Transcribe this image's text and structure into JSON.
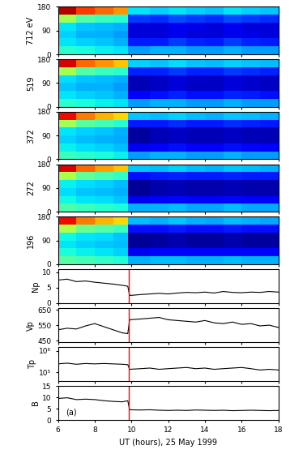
{
  "chart_data": [
    {
      "type": "heatmap",
      "ylabel": "712 eV",
      "x_edges": [
        6,
        7,
        8,
        9,
        9.8,
        11,
        12,
        13,
        14,
        15,
        16,
        17,
        18
      ],
      "y_edges": [
        0,
        30,
        60,
        90,
        120,
        150,
        180
      ],
      "cells": [
        [
          0.4,
          0.38,
          0.36,
          0.35,
          0.28,
          0.3,
          0.3,
          0.28,
          0.28,
          0.3,
          0.28,
          0.28
        ],
        [
          0.35,
          0.33,
          0.32,
          0.3,
          0.15,
          0.15,
          0.18,
          0.16,
          0.15,
          0.18,
          0.16,
          0.15
        ],
        [
          0.33,
          0.3,
          0.3,
          0.28,
          0.08,
          0.08,
          0.1,
          0.08,
          0.08,
          0.1,
          0.09,
          0.08
        ],
        [
          0.35,
          0.32,
          0.31,
          0.3,
          0.08,
          0.08,
          0.1,
          0.09,
          0.08,
          0.1,
          0.08,
          0.08
        ],
        [
          0.55,
          0.45,
          0.42,
          0.4,
          0.18,
          0.17,
          0.2,
          0.18,
          0.17,
          0.2,
          0.18,
          0.17
        ],
        [
          0.95,
          0.85,
          0.8,
          0.75,
          0.35,
          0.33,
          0.35,
          0.33,
          0.32,
          0.35,
          0.33,
          0.32
        ]
      ],
      "color_range": [
        0,
        1
      ],
      "xlim": [
        6,
        18
      ],
      "xticks": [
        6,
        8,
        10,
        12,
        14,
        16,
        18
      ],
      "ylim": [
        0,
        180
      ],
      "yticks": [
        0,
        90,
        180
      ],
      "tick_labels": "y"
    },
    {
      "type": "heatmap",
      "ylabel": "519",
      "x_edges": [
        6,
        7,
        8,
        9,
        9.8,
        11,
        12,
        13,
        14,
        15,
        16,
        17,
        18
      ],
      "y_edges": [
        0,
        30,
        60,
        90,
        120,
        150,
        180
      ],
      "cells": [
        [
          0.4,
          0.38,
          0.36,
          0.35,
          0.28,
          0.3,
          0.3,
          0.28,
          0.28,
          0.3,
          0.28,
          0.28
        ],
        [
          0.35,
          0.33,
          0.32,
          0.3,
          0.12,
          0.14,
          0.16,
          0.14,
          0.14,
          0.16,
          0.15,
          0.14
        ],
        [
          0.32,
          0.3,
          0.3,
          0.28,
          0.05,
          0.06,
          0.08,
          0.06,
          0.06,
          0.08,
          0.07,
          0.06
        ],
        [
          0.34,
          0.32,
          0.31,
          0.3,
          0.05,
          0.06,
          0.08,
          0.07,
          0.06,
          0.08,
          0.07,
          0.06
        ],
        [
          0.55,
          0.45,
          0.42,
          0.4,
          0.16,
          0.16,
          0.18,
          0.16,
          0.16,
          0.18,
          0.17,
          0.16
        ],
        [
          0.92,
          0.8,
          0.75,
          0.7,
          0.33,
          0.32,
          0.34,
          0.32,
          0.31,
          0.33,
          0.32,
          0.31
        ]
      ],
      "color_range": [
        0,
        1
      ],
      "xlim": [
        6,
        18
      ],
      "xticks": [
        6,
        8,
        10,
        12,
        14,
        16,
        18
      ],
      "ylim": [
        0,
        180
      ],
      "yticks": [
        0,
        90,
        180
      ],
      "tick_labels": "y"
    },
    {
      "type": "heatmap",
      "ylabel": "372",
      "x_edges": [
        6,
        7,
        8,
        9,
        9.8,
        11,
        12,
        13,
        14,
        15,
        16,
        17,
        18
      ],
      "y_edges": [
        0,
        30,
        60,
        90,
        120,
        150,
        180
      ],
      "cells": [
        [
          0.42,
          0.4,
          0.38,
          0.36,
          0.28,
          0.3,
          0.3,
          0.28,
          0.28,
          0.3,
          0.28,
          0.28
        ],
        [
          0.36,
          0.34,
          0.33,
          0.31,
          0.1,
          0.12,
          0.14,
          0.12,
          0.12,
          0.14,
          0.13,
          0.12
        ],
        [
          0.33,
          0.31,
          0.3,
          0.29,
          0.03,
          0.05,
          0.06,
          0.05,
          0.05,
          0.06,
          0.05,
          0.05
        ],
        [
          0.35,
          0.33,
          0.32,
          0.3,
          0.03,
          0.05,
          0.06,
          0.05,
          0.05,
          0.06,
          0.05,
          0.05
        ],
        [
          0.55,
          0.46,
          0.43,
          0.4,
          0.15,
          0.15,
          0.17,
          0.15,
          0.15,
          0.17,
          0.16,
          0.15
        ],
        [
          0.9,
          0.78,
          0.72,
          0.68,
          0.32,
          0.31,
          0.33,
          0.31,
          0.3,
          0.32,
          0.31,
          0.3
        ]
      ],
      "color_range": [
        0,
        1
      ],
      "xlim": [
        6,
        18
      ],
      "xticks": [
        6,
        8,
        10,
        12,
        14,
        16,
        18
      ],
      "ylim": [
        0,
        180
      ],
      "yticks": [
        0,
        90,
        180
      ],
      "tick_labels": "y"
    },
    {
      "type": "heatmap",
      "ylabel": "272",
      "x_edges": [
        6,
        7,
        8,
        9,
        9.8,
        11,
        12,
        13,
        14,
        15,
        16,
        17,
        18
      ],
      "y_edges": [
        0,
        30,
        60,
        90,
        120,
        150,
        180
      ],
      "cells": [
        [
          0.44,
          0.42,
          0.4,
          0.38,
          0.3,
          0.3,
          0.31,
          0.29,
          0.29,
          0.31,
          0.29,
          0.29
        ],
        [
          0.37,
          0.35,
          0.34,
          0.32,
          0.1,
          0.12,
          0.13,
          0.12,
          0.12,
          0.13,
          0.12,
          0.12
        ],
        [
          0.34,
          0.32,
          0.31,
          0.3,
          0.02,
          0.04,
          0.05,
          0.04,
          0.04,
          0.05,
          0.04,
          0.04
        ],
        [
          0.36,
          0.34,
          0.33,
          0.31,
          0.02,
          0.04,
          0.05,
          0.04,
          0.04,
          0.05,
          0.04,
          0.04
        ],
        [
          0.56,
          0.47,
          0.44,
          0.41,
          0.14,
          0.15,
          0.16,
          0.15,
          0.15,
          0.16,
          0.15,
          0.15
        ],
        [
          0.92,
          0.8,
          0.74,
          0.7,
          0.32,
          0.31,
          0.33,
          0.31,
          0.3,
          0.32,
          0.31,
          0.3
        ]
      ],
      "color_range": [
        0,
        1
      ],
      "xlim": [
        6,
        18
      ],
      "xticks": [
        6,
        8,
        10,
        12,
        14,
        16,
        18
      ],
      "ylim": [
        0,
        180
      ],
      "yticks": [
        0,
        90,
        180
      ],
      "tick_labels": "y"
    },
    {
      "type": "heatmap",
      "ylabel": "196",
      "x_edges": [
        6,
        7,
        8,
        9,
        9.8,
        11,
        12,
        13,
        14,
        15,
        16,
        17,
        18
      ],
      "y_edges": [
        0,
        30,
        60,
        90,
        120,
        150,
        180
      ],
      "cells": [
        [
          0.45,
          0.43,
          0.41,
          0.39,
          0.3,
          0.31,
          0.31,
          0.3,
          0.3,
          0.31,
          0.3,
          0.3
        ],
        [
          0.38,
          0.36,
          0.35,
          0.33,
          0.1,
          0.11,
          0.12,
          0.11,
          0.11,
          0.12,
          0.11,
          0.11
        ],
        [
          0.35,
          0.33,
          0.32,
          0.31,
          0.02,
          0.03,
          0.04,
          0.03,
          0.03,
          0.04,
          0.03,
          0.03
        ],
        [
          0.37,
          0.35,
          0.34,
          0.32,
          0.02,
          0.03,
          0.04,
          0.03,
          0.03,
          0.04,
          0.03,
          0.03
        ],
        [
          0.57,
          0.48,
          0.45,
          0.42,
          0.14,
          0.14,
          0.15,
          0.14,
          0.14,
          0.15,
          0.14,
          0.14
        ],
        [
          0.9,
          0.78,
          0.72,
          0.68,
          0.31,
          0.3,
          0.32,
          0.3,
          0.29,
          0.31,
          0.3,
          0.29
        ]
      ],
      "color_range": [
        0,
        1
      ],
      "xlim": [
        6,
        18
      ],
      "xticks": [
        6,
        8,
        10,
        12,
        14,
        16,
        18
      ],
      "ylim": [
        0,
        180
      ],
      "yticks": [
        0,
        90,
        180
      ],
      "tick_labels": "y"
    },
    {
      "type": "line",
      "ylabel": "Np",
      "x": [
        6.0,
        6.5,
        7.0,
        7.5,
        8.0,
        8.5,
        9.0,
        9.5,
        9.8,
        9.9,
        10.5,
        11.0,
        11.5,
        12.0,
        12.5,
        13.0,
        13.5,
        14.0,
        14.5,
        15.0,
        15.5,
        16.0,
        16.5,
        17.0,
        17.5,
        18.0
      ],
      "values": [
        7.5,
        7.8,
        7.0,
        7.2,
        6.8,
        6.5,
        6.2,
        5.8,
        5.5,
        2.5,
        2.8,
        3.0,
        3.2,
        3.0,
        3.3,
        3.5,
        3.4,
        3.6,
        3.3,
        3.8,
        3.5,
        3.4,
        3.6,
        3.5,
        3.8,
        3.6
      ],
      "color": "#000000",
      "vertical_line": 9.85,
      "xlim": [
        6,
        18
      ],
      "xticks": [
        6,
        8,
        10,
        12,
        14,
        16,
        18
      ],
      "ylim": [
        0,
        11
      ],
      "yticks": [
        0,
        5,
        10
      ],
      "tick_labels": "y"
    },
    {
      "type": "line",
      "ylabel": "Vp",
      "x": [
        6.0,
        6.5,
        7.0,
        7.5,
        8.0,
        8.5,
        9.0,
        9.5,
        9.8,
        9.9,
        10.5,
        11.0,
        11.5,
        12.0,
        12.5,
        13.0,
        13.5,
        14.0,
        14.5,
        15.0,
        15.5,
        16.0,
        16.5,
        17.0,
        17.5,
        18.0
      ],
      "values": [
        520,
        530,
        525,
        545,
        560,
        540,
        520,
        500,
        495,
        585,
        590,
        595,
        600,
        585,
        580,
        575,
        570,
        580,
        565,
        560,
        570,
        555,
        560,
        545,
        550,
        535
      ],
      "color": "#000000",
      "vertical_line": 9.85,
      "xlim": [
        6,
        18
      ],
      "xticks": [
        6,
        8,
        10,
        12,
        14,
        16,
        18
      ],
      "ylim": [
        440,
        660
      ],
      "yticks": [
        450,
        550,
        650
      ],
      "tick_labels": "y"
    },
    {
      "type": "line",
      "ylabel": "Tp",
      "log": "y",
      "x": [
        6.0,
        6.5,
        7.0,
        7.5,
        8.0,
        8.5,
        9.0,
        9.5,
        9.8,
        9.9,
        10.5,
        11.0,
        11.5,
        12.0,
        12.5,
        13.0,
        13.5,
        14.0,
        14.5,
        15.0,
        15.5,
        16.0,
        16.5,
        17.0,
        17.5,
        18.0
      ],
      "values": [
        250000,
        270000,
        240000,
        260000,
        250000,
        260000,
        250000,
        240000,
        230000,
        140000,
        150000,
        160000,
        140000,
        150000,
        160000,
        170000,
        150000,
        160000,
        140000,
        150000,
        160000,
        170000,
        150000,
        130000,
        140000,
        130000
      ],
      "color": "#000000",
      "vertical_line": 9.85,
      "xlim": [
        6,
        18
      ],
      "xticks": [
        6,
        8,
        10,
        12,
        14,
        16,
        18
      ],
      "ylim": [
        40000,
        1500000
      ],
      "yticks": [
        {
          "value": 100000,
          "label": "10⁵"
        },
        {
          "value": 1000000,
          "label": "10⁶"
        }
      ],
      "tick_labels": "y"
    },
    {
      "type": "line",
      "ylabel": "B",
      "x": [
        6.0,
        6.5,
        7.0,
        7.5,
        8.0,
        8.5,
        9.0,
        9.5,
        9.8,
        9.9,
        10.5,
        11.0,
        11.5,
        12.0,
        12.5,
        13.0,
        13.5,
        14.0,
        14.5,
        15.0,
        15.5,
        16.0,
        16.5,
        17.0,
        17.5,
        18.0
      ],
      "values": [
        9.5,
        9.8,
        9.0,
        9.2,
        9.0,
        8.5,
        8.2,
        8.0,
        8.5,
        4.5,
        4.4,
        4.5,
        4.3,
        4.2,
        4.3,
        4.2,
        4.4,
        4.3,
        4.2,
        4.3,
        4.1,
        4.2,
        4.3,
        4.2,
        4.1,
        4.2
      ],
      "color": "#000000",
      "vertical_line": 9.85,
      "annotations": [
        {
          "text": "(a)",
          "x": 6.4,
          "y": 2.5
        }
      ],
      "xlabel": "UT (hours), 25 May 1999",
      "xlim": [
        6,
        18
      ],
      "xticks": [
        6,
        8,
        10,
        12,
        14,
        16,
        18
      ],
      "ylim": [
        0,
        15
      ],
      "yticks": [
        0,
        5,
        10,
        15
      ]
    }
  ]
}
